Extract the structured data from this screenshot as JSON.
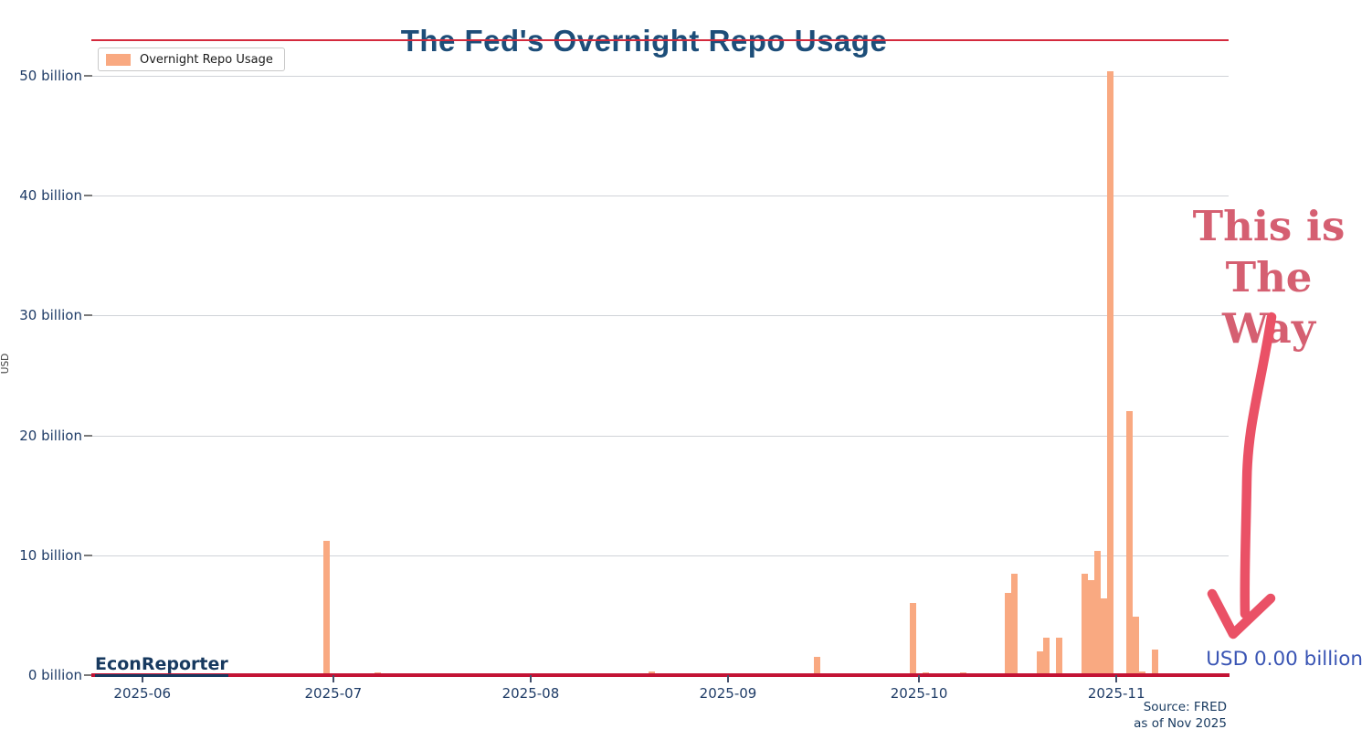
{
  "title": "The Fed's Overnight Repo Usage",
  "legend": {
    "label": "Overnight Repo Usage"
  },
  "watermark": "EconReporter",
  "annotation": {
    "line1": "This is",
    "line2": "The Way"
  },
  "latest_value_label": "USD 0.00 billion",
  "source": {
    "line1": "Source: FRED",
    "line2": "as of Nov 2025"
  },
  "y_axis": {
    "label": "USD",
    "ticks": [
      {
        "value": 50,
        "label": "50 billion"
      },
      {
        "value": 40,
        "label": "40 billion"
      },
      {
        "value": 30,
        "label": "30 billion"
      },
      {
        "value": 20,
        "label": "20 billion"
      },
      {
        "value": 10,
        "label": "10 billion"
      },
      {
        "value": 0,
        "label": "0 billion"
      }
    ]
  },
  "x_axis": {
    "ticks": [
      {
        "date": "2025-06-01",
        "label": "2025-06"
      },
      {
        "date": "2025-07-01",
        "label": "2025-07"
      },
      {
        "date": "2025-08-01",
        "label": "2025-08"
      },
      {
        "date": "2025-09-01",
        "label": "2025-09"
      },
      {
        "date": "2025-10-01",
        "label": "2025-10"
      },
      {
        "date": "2025-11-01",
        "label": "2025-11"
      }
    ]
  },
  "colors": {
    "bar": "#f9a981",
    "red_rule": "#d42a3d",
    "red_axis": "#c31335",
    "navy_title": "#1d4e79",
    "navy_tick": "#1f3c67",
    "navy_dark": "#17395f",
    "grid": "#d0d3d8",
    "annot": "#d55f71",
    "arrow": "#ea5166",
    "blue_label": "#3a55b4"
  },
  "chart_data": {
    "type": "bar",
    "title": "The Fed's Overnight Repo Usage",
    "series_name": "Overnight Repo Usage",
    "unit": "USD billions",
    "ylabel": "USD",
    "ylim": [
      0,
      52
    ],
    "x_domain": [
      "2025-05-24",
      "2025-11-18"
    ],
    "grid": "horizontal",
    "legend_position": "upper-left",
    "latest_value_billions": 0.0,
    "points": [
      {
        "date": "2025-06-30",
        "value": 11.2
      },
      {
        "date": "2025-07-08",
        "value": 0.2
      },
      {
        "date": "2025-08-12",
        "value": 0.1
      },
      {
        "date": "2025-08-20",
        "value": 0.3
      },
      {
        "date": "2025-09-08",
        "value": 0.1
      },
      {
        "date": "2025-09-15",
        "value": 1.5
      },
      {
        "date": "2025-09-30",
        "value": 6.0
      },
      {
        "date": "2025-10-02",
        "value": 0.2
      },
      {
        "date": "2025-10-08",
        "value": 0.2
      },
      {
        "date": "2025-10-15",
        "value": 6.9
      },
      {
        "date": "2025-10-16",
        "value": 8.5
      },
      {
        "date": "2025-10-20",
        "value": 2.0
      },
      {
        "date": "2025-10-21",
        "value": 3.1
      },
      {
        "date": "2025-10-23",
        "value": 3.1
      },
      {
        "date": "2025-10-27",
        "value": 8.5
      },
      {
        "date": "2025-10-28",
        "value": 7.9
      },
      {
        "date": "2025-10-29",
        "value": 10.4
      },
      {
        "date": "2025-10-30",
        "value": 6.4
      },
      {
        "date": "2025-10-31",
        "value": 50.4
      },
      {
        "date": "2025-11-03",
        "value": 22.0
      },
      {
        "date": "2025-11-04",
        "value": 4.9
      },
      {
        "date": "2025-11-05",
        "value": 0.3
      },
      {
        "date": "2025-11-07",
        "value": 2.1
      }
    ]
  }
}
